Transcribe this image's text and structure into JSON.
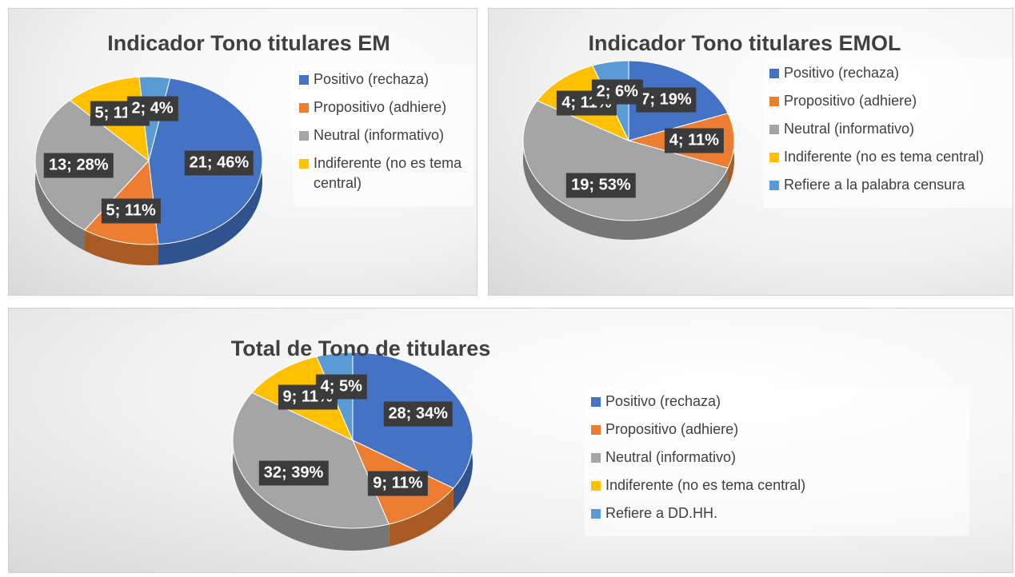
{
  "chart_data": [
    {
      "type": "pie",
      "title": "Indicador Tono titulares EM",
      "categories": [
        "Positivo (rechaza)",
        "Propositivo (adhiere)",
        "Neutral (informativo)",
        "Indiferente (no es tema central)",
        null
      ],
      "values": [
        21,
        5,
        13,
        5,
        2
      ],
      "value_labels": [
        "21; 46%",
        "5; 11%",
        "13; 28%",
        "5; 11%",
        "2; 4%"
      ],
      "colors": [
        "#4472c4",
        "#ed7d31",
        "#a5a5a5",
        "#ffc000",
        "#5b9bd5"
      ],
      "legend": "right"
    },
    {
      "type": "pie",
      "title": "Indicador Tono titulares EMOL",
      "categories": [
        "Positivo (rechaza)",
        "Propositivo (adhiere)",
        "Neutral (informativo)",
        "Indiferente (no es tema central)",
        "Refiere a la palabra censura"
      ],
      "values": [
        7,
        4,
        19,
        4,
        2
      ],
      "value_labels": [
        "7; 19%",
        "4; 11%",
        "19; 53%",
        "4; 11%",
        "2; 6%"
      ],
      "colors": [
        "#4472c4",
        "#ed7d31",
        "#a5a5a5",
        "#ffc000",
        "#5b9bd5"
      ],
      "legend": "right"
    },
    {
      "type": "pie",
      "title": "Total de Tono de titulares",
      "categories": [
        "Positivo (rechaza)",
        "Propositivo (adhiere)",
        "Neutral (informativo)",
        "Indiferente (no es tema central)",
        "Refiere a DD.HH."
      ],
      "values": [
        28,
        9,
        32,
        9,
        4
      ],
      "value_labels": [
        "28; 34%",
        "9; 11%",
        "32; 39%",
        "9; 11%",
        "4; 5%"
      ],
      "colors": [
        "#4472c4",
        "#ed7d31",
        "#a5a5a5",
        "#ffc000",
        "#5b9bd5"
      ],
      "legend": "right"
    }
  ]
}
